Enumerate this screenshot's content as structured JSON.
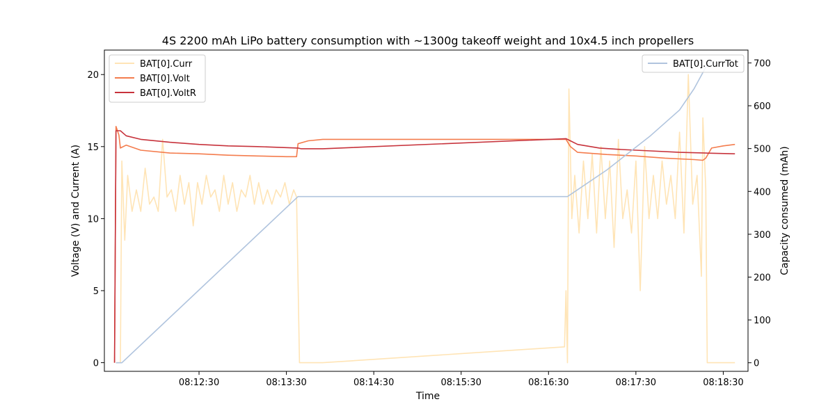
{
  "chart_data": {
    "type": "line",
    "title": "4S 2200 mAh LiPo battery consumption with ~1300g takeoff weight and 10x4.5 inch propellers",
    "xlabel": "Time",
    "ylabel_left": "Voltage (V) and Current (A)",
    "ylabel_right": "Capacity consumed (mAh)",
    "xlim": [
      "08:11:25",
      "08:18:47"
    ],
    "ylim_left": [
      -0.6,
      21.7
    ],
    "ylim_right": [
      -20,
      730
    ],
    "x_ticks": [
      "08:12:30",
      "08:13:30",
      "08:14:30",
      "08:15:30",
      "08:16:30",
      "08:17:30",
      "08:18:30"
    ],
    "y_ticks_left": [
      "0",
      "5",
      "10",
      "15",
      "20"
    ],
    "y_ticks_right": [
      "0",
      "100",
      "200",
      "300",
      "400",
      "500",
      "600",
      "700"
    ],
    "legend_left_position": "upper-left",
    "legend_right_position": "upper-right",
    "grid": false,
    "series": [
      {
        "name": "BAT[0].Curr",
        "axis": "left",
        "color": "#ffe4b5",
        "points": [
          [
            "08:11:33",
            0
          ],
          [
            "08:11:36",
            0
          ],
          [
            "08:11:37",
            14
          ],
          [
            "08:11:39",
            8.5
          ],
          [
            "08:11:41",
            13
          ],
          [
            "08:11:44",
            10.5
          ],
          [
            "08:11:47",
            12
          ],
          [
            "08:11:50",
            10.5
          ],
          [
            "08:11:53",
            13.5
          ],
          [
            "08:11:56",
            11
          ],
          [
            "08:11:59",
            11.5
          ],
          [
            "08:12:02",
            10.5
          ],
          [
            "08:12:05",
            15.5
          ],
          [
            "08:12:08",
            11.5
          ],
          [
            "08:12:11",
            12
          ],
          [
            "08:12:14",
            10.5
          ],
          [
            "08:12:17",
            13
          ],
          [
            "08:12:20",
            11
          ],
          [
            "08:12:23",
            12.5
          ],
          [
            "08:12:26",
            9.5
          ],
          [
            "08:12:29",
            12.5
          ],
          [
            "08:12:32",
            11
          ],
          [
            "08:12:35",
            13
          ],
          [
            "08:12:38",
            11.5
          ],
          [
            "08:12:41",
            12
          ],
          [
            "08:12:44",
            10.5
          ],
          [
            "08:12:47",
            13
          ],
          [
            "08:12:50",
            11
          ],
          [
            "08:12:53",
            12.5
          ],
          [
            "08:12:56",
            10.5
          ],
          [
            "08:12:59",
            12
          ],
          [
            "08:13:02",
            11.5
          ],
          [
            "08:13:05",
            13
          ],
          [
            "08:13:08",
            11
          ],
          [
            "08:13:11",
            12.5
          ],
          [
            "08:13:14",
            11
          ],
          [
            "08:13:17",
            12
          ],
          [
            "08:13:20",
            11
          ],
          [
            "08:13:23",
            12
          ],
          [
            "08:13:26",
            11.5
          ],
          [
            "08:13:29",
            12.5
          ],
          [
            "08:13:32",
            11
          ],
          [
            "08:13:35",
            12
          ],
          [
            "08:13:37",
            11.5
          ],
          [
            "08:13:39",
            0
          ],
          [
            "08:13:55",
            0
          ],
          [
            "08:16:41",
            1.1
          ],
          [
            "08:16:42",
            5
          ],
          [
            "08:16:43",
            0
          ],
          [
            "08:16:44",
            19
          ],
          [
            "08:16:46",
            10
          ],
          [
            "08:16:48",
            13
          ],
          [
            "08:16:51",
            9
          ],
          [
            "08:16:54",
            14
          ],
          [
            "08:16:57",
            10
          ],
          [
            "08:17:00",
            14.5
          ],
          [
            "08:17:03",
            9
          ],
          [
            "08:17:06",
            15
          ],
          [
            "08:17:09",
            10
          ],
          [
            "08:17:12",
            14
          ],
          [
            "08:17:15",
            8
          ],
          [
            "08:17:18",
            15.5
          ],
          [
            "08:17:21",
            10
          ],
          [
            "08:17:24",
            12
          ],
          [
            "08:17:27",
            9
          ],
          [
            "08:17:30",
            14
          ],
          [
            "08:17:33",
            5
          ],
          [
            "08:17:36",
            15
          ],
          [
            "08:17:39",
            10
          ],
          [
            "08:17:42",
            13
          ],
          [
            "08:17:45",
            10
          ],
          [
            "08:17:48",
            14
          ],
          [
            "08:17:51",
            11
          ],
          [
            "08:17:54",
            13
          ],
          [
            "08:17:57",
            10
          ],
          [
            "08:18:00",
            16
          ],
          [
            "08:18:03",
            9
          ],
          [
            "08:18:06",
            20
          ],
          [
            "08:18:09",
            11
          ],
          [
            "08:18:12",
            13
          ],
          [
            "08:18:15",
            6
          ],
          [
            "08:18:16",
            17
          ],
          [
            "08:18:18",
            12
          ],
          [
            "08:18:19",
            0
          ],
          [
            "08:18:38",
            0
          ]
        ]
      },
      {
        "name": "BAT[0].Volt",
        "axis": "left",
        "color": "#f47c4d",
        "points": [
          [
            "08:11:32",
            0
          ],
          [
            "08:11:33",
            16.4
          ],
          [
            "08:11:35",
            15.8
          ],
          [
            "08:11:36",
            14.9
          ],
          [
            "08:11:40",
            15.1
          ],
          [
            "08:11:50",
            14.75
          ],
          [
            "08:12:10",
            14.55
          ],
          [
            "08:12:30",
            14.5
          ],
          [
            "08:12:50",
            14.4
          ],
          [
            "08:13:10",
            14.35
          ],
          [
            "08:13:30",
            14.3
          ],
          [
            "08:13:37",
            14.3
          ],
          [
            "08:13:38",
            15.2
          ],
          [
            "08:13:45",
            15.4
          ],
          [
            "08:13:55",
            15.5
          ],
          [
            "08:16:42",
            15.5
          ],
          [
            "08:16:45",
            15.0
          ],
          [
            "08:16:50",
            14.6
          ],
          [
            "08:17:10",
            14.45
          ],
          [
            "08:17:30",
            14.35
          ],
          [
            "08:17:50",
            14.2
          ],
          [
            "08:18:10",
            14.1
          ],
          [
            "08:18:16",
            14.05
          ],
          [
            "08:18:18",
            14.2
          ],
          [
            "08:18:22",
            14.9
          ],
          [
            "08:18:30",
            15.05
          ],
          [
            "08:18:38",
            15.15
          ]
        ]
      },
      {
        "name": "BAT[0].VoltR",
        "axis": "left",
        "color": "#c7323b",
        "points": [
          [
            "08:11:32",
            0
          ],
          [
            "08:11:33",
            16.1
          ],
          [
            "08:11:36",
            16.1
          ],
          [
            "08:11:40",
            15.75
          ],
          [
            "08:11:50",
            15.5
          ],
          [
            "08:12:10",
            15.3
          ],
          [
            "08:12:30",
            15.15
          ],
          [
            "08:12:50",
            15.05
          ],
          [
            "08:13:10",
            15.0
          ],
          [
            "08:13:38",
            14.9
          ],
          [
            "08:13:40",
            14.85
          ],
          [
            "08:13:55",
            14.85
          ],
          [
            "08:16:42",
            15.55
          ],
          [
            "08:16:45",
            15.4
          ],
          [
            "08:16:50",
            15.15
          ],
          [
            "08:17:05",
            14.9
          ],
          [
            "08:17:20",
            14.8
          ],
          [
            "08:17:40",
            14.7
          ],
          [
            "08:18:00",
            14.6
          ],
          [
            "08:18:18",
            14.55
          ],
          [
            "08:18:38",
            14.5
          ]
        ]
      },
      {
        "name": "BAT[0].CurrTot",
        "axis": "right",
        "color": "#b0c4de",
        "points": [
          [
            "08:11:33",
            0
          ],
          [
            "08:11:37",
            0
          ],
          [
            "08:13:38",
            388
          ],
          [
            "08:16:43",
            388
          ],
          [
            "08:17:10",
            450
          ],
          [
            "08:17:40",
            530
          ],
          [
            "08:18:00",
            590
          ],
          [
            "08:18:10",
            640
          ],
          [
            "08:18:18",
            690
          ],
          [
            "08:18:22",
            705
          ]
        ]
      }
    ]
  }
}
